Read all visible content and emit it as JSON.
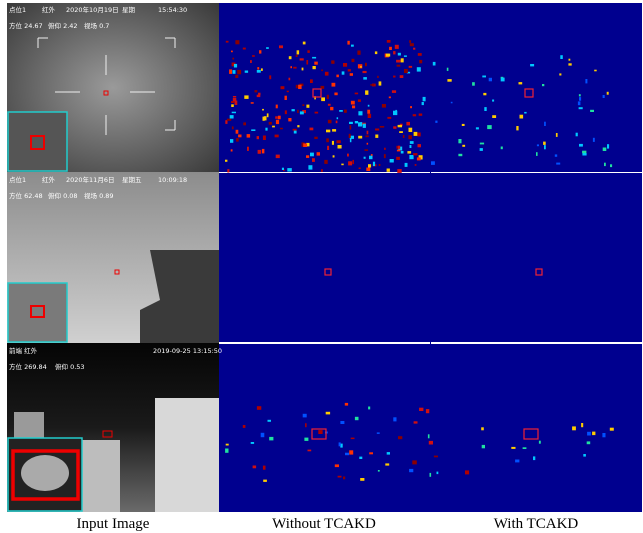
{
  "figure": {
    "rows": [
      {
        "overlay_line1": [
          "点位1",
          "红外",
          "2020年10月19日",
          "星期",
          "15:54:30"
        ],
        "overlay_line2": [
          "方位 24.67",
          "俯仰 2.42",
          "视场 0.7"
        ]
      },
      {
        "overlay_line1": [
          "点位1",
          "红外",
          "2020年11月6日",
          "星期五",
          "10:09:18"
        ],
        "overlay_line2": [
          "方位 62.48",
          "俯仰 0.08",
          "视场 0.89"
        ]
      },
      {
        "overlay_line1": [
          "前端 红外",
          "2019-09-25 13:15:50"
        ],
        "overlay_line2": [
          "方位 269.84",
          "俯仰 0.53"
        ]
      }
    ],
    "captions": [
      "Input Image",
      "Without TCAKD",
      "With TCAKD"
    ]
  }
}
